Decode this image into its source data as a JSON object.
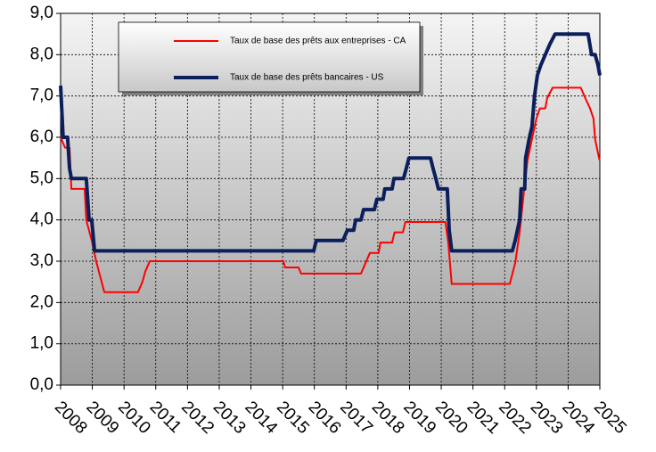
{
  "chart_data": {
    "type": "line",
    "series": [
      {
        "name": "Taux de base des prêts aux entreprises - CA",
        "color": "#ff0000",
        "width": 2,
        "x": [
          2008.0,
          2008.14,
          2008.28,
          2008.34,
          2008.76,
          2008.81,
          2008.98,
          2009.12,
          2009.38,
          2010.44,
          2010.58,
          2010.67,
          2010.81,
          2015.02,
          2015.08,
          2015.5,
          2015.58,
          2017.47,
          2017.61,
          2017.75,
          2018.03,
          2018.08,
          2018.45,
          2018.53,
          2018.79,
          2018.87,
          2020.13,
          2020.22,
          2020.33,
          2022.16,
          2022.33,
          2022.47,
          2022.61,
          2022.72,
          2022.86,
          2023.0,
          2023.11,
          2023.28,
          2023.34,
          2023.51,
          2024.4,
          2024.54,
          2024.69,
          2024.8,
          2024.85,
          2024.99
        ],
        "values": [
          6.0,
          5.75,
          5.75,
          4.75,
          4.75,
          4.0,
          3.5,
          3.0,
          2.25,
          2.25,
          2.5,
          2.75,
          3.0,
          3.0,
          2.85,
          2.85,
          2.7,
          2.7,
          2.95,
          3.2,
          3.2,
          3.45,
          3.45,
          3.7,
          3.7,
          3.95,
          3.95,
          3.45,
          2.45,
          2.45,
          2.95,
          3.7,
          4.7,
          5.45,
          5.95,
          6.45,
          6.7,
          6.7,
          6.95,
          7.2,
          7.2,
          6.95,
          6.7,
          6.45,
          5.95,
          5.45
        ]
      },
      {
        "name": "Taux de base des prêts bancaires - US",
        "color": "#0a1f5c",
        "width": 4,
        "x": [
          2008.0,
          2008.08,
          2008.22,
          2008.28,
          2008.34,
          2008.81,
          2008.9,
          2008.98,
          2009.07,
          2015.98,
          2016.06,
          2016.9,
          2017.04,
          2017.24,
          2017.3,
          2017.47,
          2017.55,
          2017.89,
          2017.97,
          2018.17,
          2018.22,
          2018.45,
          2018.51,
          2018.81,
          2018.9,
          2018.98,
          2019.66,
          2019.74,
          2019.83,
          2019.91,
          2020.19,
          2020.25,
          2020.33,
          2022.24,
          2022.33,
          2022.47,
          2022.52,
          2022.63,
          2022.66,
          2022.78,
          2022.86,
          2022.94,
          2023.03,
          2023.14,
          2023.28,
          2023.42,
          2023.59,
          2024.63,
          2024.74,
          2024.85,
          2024.94,
          2025.0
        ],
        "values": [
          7.25,
          6.0,
          6.0,
          5.25,
          5.0,
          5.0,
          4.0,
          4.0,
          3.25,
          3.25,
          3.5,
          3.5,
          3.75,
          3.75,
          4.0,
          4.0,
          4.25,
          4.25,
          4.5,
          4.5,
          4.75,
          4.75,
          5.0,
          5.0,
          5.25,
          5.5,
          5.5,
          5.25,
          5.0,
          4.75,
          4.75,
          3.75,
          3.25,
          3.25,
          3.5,
          4.0,
          4.75,
          4.75,
          5.5,
          6.0,
          6.25,
          7.0,
          7.5,
          7.75,
          8.0,
          8.25,
          8.5,
          8.5,
          8.0,
          8.0,
          7.75,
          7.5
        ]
      }
    ],
    "xlim": [
      2008,
      2025
    ],
    "xticks": [
      2008,
      2009,
      2010,
      2011,
      2012,
      2013,
      2014,
      2015,
      2016,
      2017,
      2018,
      2019,
      2020,
      2021,
      2022,
      2023,
      2024,
      2025
    ],
    "ylim": [
      0,
      9
    ],
    "yticks": [
      {
        "value": 0,
        "label": "0,0"
      },
      {
        "value": 1,
        "label": "1,0"
      },
      {
        "value": 2,
        "label": "2,0"
      },
      {
        "value": 3,
        "label": "3,0"
      },
      {
        "value": 4,
        "label": "4,0"
      },
      {
        "value": 5,
        "label": "5,0"
      },
      {
        "value": 6,
        "label": "6,0"
      },
      {
        "value": 7,
        "label": "7,0"
      },
      {
        "value": 8,
        "label": "8,0"
      },
      {
        "value": 9,
        "label": "9,0"
      }
    ],
    "grid": true
  }
}
